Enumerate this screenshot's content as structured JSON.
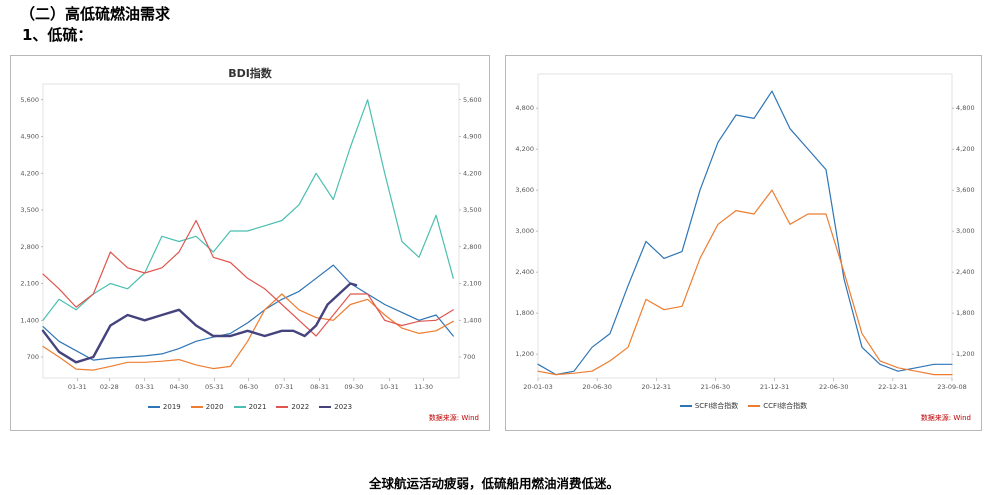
{
  "header": {
    "section_title": "（二）高低硫燃油需求",
    "subsection_title": "1、低硫："
  },
  "caption": "全球航运活动疲弱，低硫船用燃油消费低迷。",
  "chart_data": [
    {
      "type": "line",
      "title": "BDI指数",
      "source": "数据来源: Wind",
      "x_tick_labels": [
        "01-31",
        "02-28",
        "03-31",
        "04-30",
        "05-31",
        "06-30",
        "07-31",
        "08-31",
        "09-30",
        "10-31",
        "11-30"
      ],
      "x_range_days": [
        1,
        365
      ],
      "yticks": [
        700,
        1400,
        2100,
        2800,
        3500,
        4200,
        4900,
        5600
      ],
      "y_tick_labels": [
        "700",
        "1,400",
        "2,100",
        "2,800",
        "3,500",
        "4,200",
        "4,900",
        "5,600"
      ],
      "ylim": [
        300,
        5900
      ],
      "legend_position": "bottom",
      "series": [
        {
          "name": "2019",
          "color": "#2e75b6",
          "width": 1.2,
          "x": [
            1,
            15,
            30,
            45,
            60,
            75,
            90,
            105,
            120,
            135,
            150,
            165,
            180,
            195,
            210,
            225,
            240,
            255,
            270,
            285,
            300,
            315,
            330,
            345,
            360
          ],
          "values": [
            1280,
            1000,
            820,
            640,
            680,
            700,
            720,
            760,
            860,
            1000,
            1080,
            1150,
            1350,
            1600,
            1800,
            1950,
            2200,
            2450,
            2100,
            1900,
            1700,
            1550,
            1400,
            1500,
            1100
          ]
        },
        {
          "name": "2020",
          "color": "#ed7d31",
          "width": 1.2,
          "x": [
            1,
            15,
            30,
            45,
            60,
            75,
            90,
            105,
            120,
            135,
            150,
            165,
            180,
            195,
            210,
            225,
            240,
            255,
            270,
            285,
            300,
            315,
            330,
            345,
            360
          ],
          "values": [
            900,
            700,
            470,
            450,
            520,
            600,
            600,
            620,
            650,
            550,
            480,
            520,
            1000,
            1600,
            1900,
            1600,
            1450,
            1400,
            1700,
            1800,
            1500,
            1250,
            1150,
            1200,
            1380
          ]
        },
        {
          "name": "2021",
          "color": "#4bbfb0",
          "width": 1.2,
          "x": [
            1,
            15,
            30,
            45,
            60,
            75,
            90,
            105,
            120,
            135,
            150,
            165,
            180,
            195,
            210,
            225,
            240,
            255,
            270,
            285,
            300,
            315,
            330,
            345,
            360
          ],
          "values": [
            1400,
            1800,
            1600,
            1900,
            2100,
            2000,
            2300,
            3000,
            2900,
            3000,
            2700,
            3100,
            3100,
            3200,
            3300,
            3600,
            4200,
            3700,
            4700,
            5600,
            4200,
            2900,
            2600,
            3400,
            2200
          ]
        },
        {
          "name": "2022",
          "color": "#e0554f",
          "width": 1.2,
          "x": [
            1,
            15,
            30,
            45,
            60,
            75,
            90,
            105,
            120,
            135,
            150,
            165,
            180,
            195,
            210,
            225,
            240,
            255,
            270,
            285,
            300,
            315,
            330,
            345,
            360
          ],
          "values": [
            2280,
            2000,
            1650,
            1900,
            2700,
            2400,
            2300,
            2400,
            2700,
            3300,
            2600,
            2500,
            2200,
            2000,
            1700,
            1400,
            1100,
            1500,
            1900,
            1900,
            1400,
            1300,
            1380,
            1400,
            1600
          ]
        },
        {
          "name": "2023",
          "color": "#45437d",
          "width": 2.4,
          "x": [
            1,
            15,
            30,
            45,
            60,
            75,
            90,
            105,
            120,
            135,
            150,
            165,
            180,
            195,
            210,
            220,
            230,
            240,
            250,
            260,
            270,
            275
          ],
          "values": [
            1200,
            800,
            600,
            700,
            1300,
            1500,
            1400,
            1500,
            1600,
            1300,
            1100,
            1100,
            1200,
            1100,
            1200,
            1200,
            1100,
            1300,
            1700,
            1900,
            2100,
            2070
          ]
        }
      ]
    },
    {
      "type": "line",
      "title": "",
      "source": "数据来源: Wind",
      "x_tick_labels": [
        "20-01-03",
        "20-06-30",
        "20-12-31",
        "21-06-30",
        "21-12-31",
        "22-06-30",
        "22-12-31",
        "23-09-08"
      ],
      "x": [
        "20-01",
        "20-03",
        "20-05",
        "20-07",
        "20-09",
        "20-11",
        "21-01",
        "21-02",
        "21-03",
        "21-05",
        "21-07",
        "21-09",
        "21-11",
        "22-01",
        "22-03",
        "22-05",
        "22-07",
        "22-09",
        "22-11",
        "23-01",
        "23-03",
        "23-05",
        "23-07",
        "23-09"
      ],
      "yticks": [
        1200,
        1800,
        2400,
        3000,
        3600,
        4200,
        4800
      ],
      "y_tick_labels": [
        "1,200",
        "1,800",
        "2,400",
        "3,000",
        "3,600",
        "4,200",
        "4,800"
      ],
      "ylim": [
        850,
        5300
      ],
      "legend_position": "bottom",
      "series": [
        {
          "name": "SCFI综合指数",
          "color": "#2e75b6",
          "width": 1.2,
          "values": [
            1050,
            900,
            950,
            1300,
            1500,
            2200,
            2850,
            2600,
            2700,
            3600,
            4300,
            4700,
            4650,
            5050,
            4500,
            4200,
            3900,
            2300,
            1300,
            1050,
            950,
            1000,
            1050,
            1050
          ]
        },
        {
          "name": "CCFI综合指数",
          "color": "#ed7d31",
          "width": 1.2,
          "values": [
            950,
            900,
            920,
            950,
            1100,
            1300,
            2000,
            1850,
            1900,
            2600,
            3100,
            3300,
            3250,
            3600,
            3100,
            3250,
            3250,
            2400,
            1500,
            1100,
            1000,
            950,
            900,
            900
          ]
        }
      ]
    }
  ]
}
